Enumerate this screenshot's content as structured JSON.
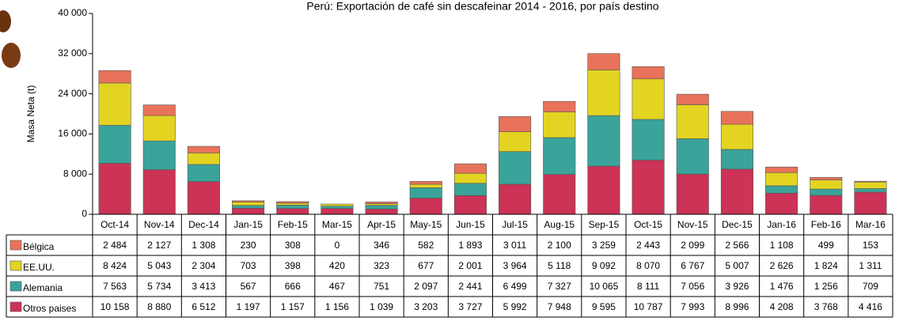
{
  "chart_data": {
    "type": "stacked_bar",
    "title": "Perú: Exportación de café sin descafeinar 2014 - 2016, por país destino",
    "y_label": "Masa Neta (t)",
    "categories": [
      "Oct-14",
      "Nov-14",
      "Dec-14",
      "Jan-15",
      "Feb-15",
      "Mar-15",
      "Apr-15",
      "May-15",
      "Jun-15",
      "Jul-15",
      "Aug-15",
      "Sep-15",
      "Oct-15",
      "Nov-15",
      "Dec-15",
      "Jan-16",
      "Feb-16",
      "Mar-16"
    ],
    "series": [
      {
        "name": "Bélgica",
        "color": "#e8735a",
        "values": [
          2484,
          2127,
          1308,
          230,
          308,
          0,
          346,
          582,
          1893,
          3011,
          2100,
          3259,
          2443,
          2099,
          2566,
          1108,
          499,
          153
        ],
        "value_labels": [
          "2 484",
          "2 127",
          "1 308",
          "230",
          "308",
          "0",
          "346",
          "582",
          "1 893",
          "3 011",
          "2 100",
          "3 259",
          "2 443",
          "2 099",
          "2 566",
          "1 108",
          "499",
          "153"
        ]
      },
      {
        "name": "EE.UU.",
        "color": "#e3d422",
        "values": [
          8424,
          5043,
          2304,
          703,
          398,
          420,
          323,
          677,
          2001,
          3964,
          5118,
          9092,
          8070,
          6767,
          5007,
          2626,
          1824,
          1311
        ],
        "value_labels": [
          "8 424",
          "5 043",
          "2 304",
          "703",
          "398",
          "420",
          "323",
          "677",
          "2 001",
          "3 964",
          "5 118",
          "9 092",
          "8 070",
          "6 767",
          "5 007",
          "2 626",
          "1 824",
          "1 311"
        ]
      },
      {
        "name": "Alemania",
        "color": "#3aa39a",
        "values": [
          7563,
          5734,
          3413,
          567,
          666,
          467,
          751,
          2097,
          2441,
          6499,
          7327,
          10065,
          8111,
          7056,
          3926,
          1476,
          1256,
          709
        ],
        "value_labels": [
          "7 563",
          "5 734",
          "3 413",
          "567",
          "666",
          "467",
          "751",
          "2 097",
          "2 441",
          "6 499",
          "7 327",
          "10 065",
          "8 111",
          "7 056",
          "3 926",
          "1 476",
          "1 256",
          "709"
        ]
      },
      {
        "name": "Otros paises",
        "color": "#cc3356",
        "values": [
          10158,
          8880,
          6512,
          1197,
          1157,
          1156,
          1039,
          3203,
          3727,
          5992,
          7948,
          9595,
          10787,
          7993,
          8996,
          4208,
          3768,
          4416
        ],
        "value_labels": [
          "10 158",
          "8 880",
          "6 512",
          "1 197",
          "1 157",
          "1 156",
          "1 039",
          "3 203",
          "3 727",
          "5 992",
          "7 948",
          "9 595",
          "10 787",
          "7 993",
          "8 996",
          "4 208",
          "3 768",
          "4 416"
        ]
      }
    ],
    "ylim": [
      0,
      40000
    ],
    "yticks": [
      0,
      {
        "value": 8000,
        "label": "8 000"
      },
      {
        "value": 16000,
        "label": "16 000"
      },
      {
        "value": 24000,
        "label": "24 000"
      },
      {
        "value": 32000,
        "label": "32 000"
      },
      {
        "value": 40000,
        "label": "40 000"
      }
    ]
  }
}
